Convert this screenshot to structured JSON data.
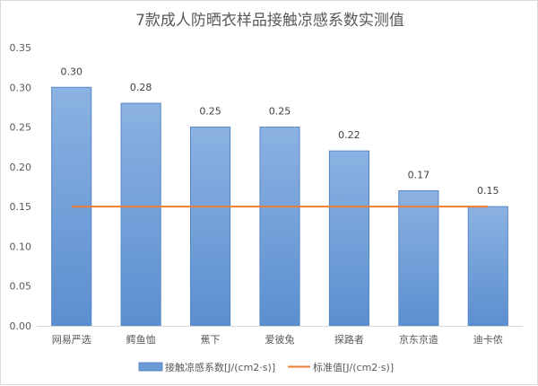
{
  "chart_data": {
    "type": "bar",
    "title": "7款成人防晒衣样品接触凉感系数实测值",
    "categories": [
      "网易严选",
      "鳄鱼恤",
      "蕉下",
      "爱彼兔",
      "探路者",
      "京东京造",
      "迪卡侬"
    ],
    "series": [
      {
        "name": "接触凉感系数[J/(cm2·s)]",
        "type": "bar",
        "values": [
          0.3,
          0.28,
          0.25,
          0.25,
          0.22,
          0.17,
          0.15
        ],
        "data_labels": [
          "0.30",
          "0.28",
          "0.25",
          "0.25",
          "0.22",
          "0.17",
          "0.15"
        ],
        "color": "#6a9bd6"
      },
      {
        "name": "标准值[J/(cm2·s)]",
        "type": "line",
        "values": [
          0.15,
          0.15,
          0.15,
          0.15,
          0.15,
          0.15,
          0.15
        ],
        "color": "#ed7d31"
      }
    ],
    "ylim": [
      0,
      0.35
    ],
    "yticks": [
      "0.00",
      "0.05",
      "0.10",
      "0.15",
      "0.20",
      "0.25",
      "0.30",
      "0.35"
    ],
    "grid": false,
    "legend_position": "bottom"
  }
}
